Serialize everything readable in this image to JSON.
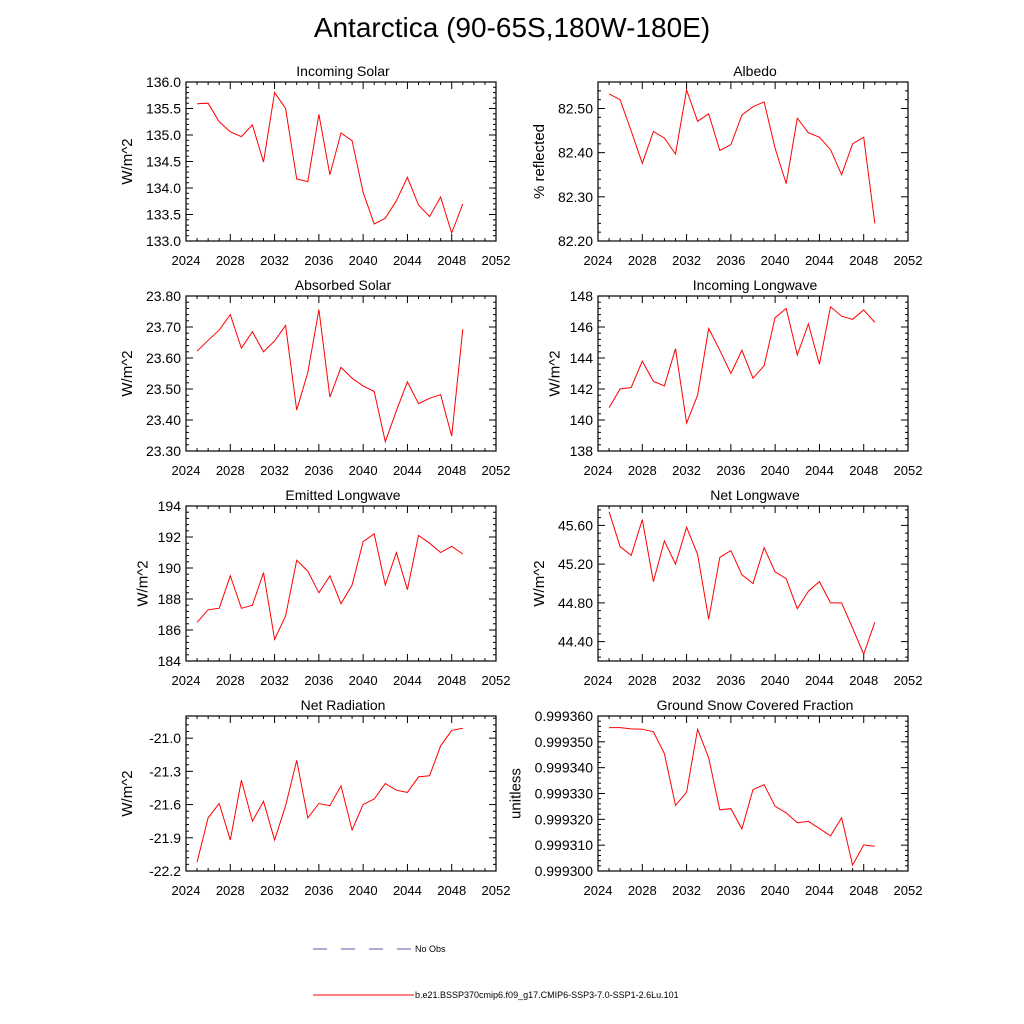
{
  "title": "Antarctica (90-65S,180W-180E)",
  "legend": {
    "obs_label": "No Obs",
    "obs_color": "#5a5aa0",
    "model_label": "b.e21.BSSP370cmip6.f09_g17.CMIP6-SSP3-7.0-SSP1-2.6Lu.101",
    "model_color": "#ff0000"
  },
  "chart_data": [
    {
      "type": "line",
      "title": "Incoming Solar",
      "ylabel": "W/m^2",
      "xlim": [
        2024,
        2052
      ],
      "xticks": [
        2024,
        2028,
        2032,
        2036,
        2040,
        2044,
        2048,
        2052
      ],
      "ylim": [
        133.0,
        136.0
      ],
      "yticks": [
        "133.0",
        "133.5",
        "134.0",
        "134.5",
        "135.0",
        "135.5",
        "136.0"
      ],
      "x": [
        2025,
        2026,
        2027,
        2028,
        2029,
        2030,
        2031,
        2032,
        2033,
        2034,
        2035,
        2036,
        2037,
        2038,
        2039,
        2040,
        2041,
        2042,
        2043,
        2044,
        2045,
        2046,
        2047,
        2048,
        2049
      ],
      "y": [
        135.59,
        135.6,
        135.25,
        135.06,
        134.97,
        135.19,
        134.49,
        135.8,
        135.5,
        134.17,
        134.12,
        135.39,
        134.25,
        135.04,
        134.89,
        133.92,
        133.32,
        133.43,
        133.76,
        134.2,
        133.68,
        133.46,
        133.83,
        133.15,
        133.7
      ]
    },
    {
      "type": "line",
      "title": "Albedo",
      "ylabel": "% reflected",
      "xlim": [
        2024,
        2052
      ],
      "xticks": [
        2024,
        2028,
        2032,
        2036,
        2040,
        2044,
        2048,
        2052
      ],
      "ylim": [
        82.2,
        82.56
      ],
      "yticks": [
        "82.20",
        "82.30",
        "82.40",
        "82.50"
      ],
      "x": [
        2025,
        2026,
        2027,
        2028,
        2029,
        2030,
        2031,
        2032,
        2033,
        2034,
        2035,
        2036,
        2037,
        2038,
        2039,
        2040,
        2041,
        2042,
        2043,
        2044,
        2045,
        2046,
        2047,
        2048,
        2049
      ],
      "y": [
        82.533,
        82.52,
        82.449,
        82.376,
        82.448,
        82.433,
        82.397,
        82.542,
        82.471,
        82.488,
        82.405,
        82.418,
        82.485,
        82.504,
        82.515,
        82.41,
        82.33,
        82.478,
        82.445,
        82.435,
        82.407,
        82.35,
        82.42,
        82.435,
        82.24
      ]
    },
    {
      "type": "line",
      "title": "Absorbed Solar",
      "ylabel": "W/m^2",
      "xlim": [
        2024,
        2052
      ],
      "xticks": [
        2024,
        2028,
        2032,
        2036,
        2040,
        2044,
        2048,
        2052
      ],
      "ylim": [
        23.3,
        23.8
      ],
      "yticks": [
        "23.30",
        "23.40",
        "23.50",
        "23.60",
        "23.70",
        "23.80"
      ],
      "x": [
        2025,
        2026,
        2027,
        2028,
        2029,
        2030,
        2031,
        2032,
        2033,
        2034,
        2035,
        2036,
        2037,
        2038,
        2039,
        2040,
        2041,
        2042,
        2043,
        2044,
        2045,
        2046,
        2047,
        2048,
        2049
      ],
      "y": [
        23.622,
        23.657,
        23.69,
        23.74,
        23.632,
        23.685,
        23.62,
        23.655,
        23.705,
        23.432,
        23.553,
        23.756,
        23.474,
        23.57,
        23.535,
        23.51,
        23.492,
        23.33,
        23.43,
        23.523,
        23.453,
        23.47,
        23.482,
        23.348,
        23.693
      ]
    },
    {
      "type": "line",
      "title": "Incoming Longwave",
      "ylabel": "W/m^2",
      "xlim": [
        2024,
        2052
      ],
      "xticks": [
        2024,
        2028,
        2032,
        2036,
        2040,
        2044,
        2048,
        2052
      ],
      "ylim": [
        138,
        148
      ],
      "yticks": [
        "138",
        "140",
        "142",
        "144",
        "146",
        "148"
      ],
      "x": [
        2025,
        2026,
        2027,
        2028,
        2029,
        2030,
        2031,
        2032,
        2033,
        2034,
        2035,
        2036,
        2037,
        2038,
        2039,
        2040,
        2041,
        2042,
        2043,
        2044,
        2045,
        2046,
        2047,
        2048,
        2049
      ],
      "y": [
        140.8,
        142.0,
        142.1,
        143.8,
        142.5,
        142.2,
        144.6,
        139.8,
        141.6,
        145.9,
        144.5,
        143.0,
        144.5,
        142.7,
        143.5,
        146.6,
        147.2,
        144.2,
        146.2,
        143.6,
        147.3,
        146.7,
        146.5,
        147.1,
        146.3
      ]
    },
    {
      "type": "line",
      "title": "Emitted Longwave",
      "ylabel": "W/m^2",
      "xlim": [
        2024,
        2052
      ],
      "xticks": [
        2024,
        2028,
        2032,
        2036,
        2040,
        2044,
        2048,
        2052
      ],
      "ylim": [
        184,
        194
      ],
      "yticks": [
        "184",
        "186",
        "188",
        "190",
        "192",
        "194"
      ],
      "x": [
        2025,
        2026,
        2027,
        2028,
        2029,
        2030,
        2031,
        2032,
        2033,
        2034,
        2035,
        2036,
        2037,
        2038,
        2039,
        2040,
        2041,
        2042,
        2043,
        2044,
        2045,
        2046,
        2047,
        2048,
        2049
      ],
      "y": [
        186.5,
        187.3,
        187.4,
        189.5,
        187.4,
        187.6,
        189.7,
        185.4,
        186.9,
        190.5,
        189.8,
        188.4,
        189.5,
        187.7,
        188.9,
        191.7,
        192.2,
        188.9,
        191.0,
        188.6,
        192.1,
        191.6,
        191.0,
        191.4,
        190.9
      ]
    },
    {
      "type": "line",
      "title": "Net Longwave",
      "ylabel": "W/m^2",
      "xlim": [
        2024,
        2052
      ],
      "xticks": [
        2024,
        2028,
        2032,
        2036,
        2040,
        2044,
        2048,
        2052
      ],
      "ylim": [
        44.2,
        45.8
      ],
      "yticks": [
        "44.40",
        "44.80",
        "45.20",
        "45.60"
      ],
      "x": [
        2025,
        2026,
        2027,
        2028,
        2029,
        2030,
        2031,
        2032,
        2033,
        2034,
        2035,
        2036,
        2037,
        2038,
        2039,
        2040,
        2041,
        2042,
        2043,
        2044,
        2045,
        2046,
        2047,
        2048,
        2049
      ],
      "y": [
        45.74,
        45.38,
        45.29,
        45.66,
        45.02,
        45.44,
        45.2,
        45.58,
        45.3,
        44.63,
        45.27,
        45.34,
        45.09,
        45.0,
        45.37,
        45.12,
        45.05,
        44.74,
        44.92,
        45.02,
        44.8,
        44.8,
        44.54,
        44.27,
        44.6
      ]
    },
    {
      "type": "line",
      "title": "Net Radiation",
      "ylabel": "W/m^2",
      "xlim": [
        2024,
        2052
      ],
      "xticks": [
        2024,
        2028,
        2032,
        2036,
        2040,
        2044,
        2048,
        2052
      ],
      "ylim": [
        -22.2,
        -20.8
      ],
      "yticks": [
        "-22.2",
        "-21.9",
        "-21.6",
        "-21.3",
        "-21.0"
      ],
      "x": [
        2025,
        2026,
        2027,
        2028,
        2029,
        2030,
        2031,
        2032,
        2033,
        2034,
        2035,
        2036,
        2037,
        2038,
        2039,
        2040,
        2041,
        2042,
        2043,
        2044,
        2045,
        2046,
        2047,
        2048,
        2049
      ],
      "y": [
        -22.12,
        -21.72,
        -21.59,
        -21.92,
        -21.38,
        -21.75,
        -21.57,
        -21.92,
        -21.61,
        -21.2,
        -21.72,
        -21.59,
        -21.61,
        -21.43,
        -21.83,
        -21.6,
        -21.55,
        -21.41,
        -21.47,
        -21.49,
        -21.35,
        -21.34,
        -21.07,
        -20.93,
        -20.91
      ]
    },
    {
      "type": "line",
      "title": "Ground Snow Covered Fraction",
      "ylabel": "unitless",
      "xlim": [
        2024,
        2052
      ],
      "xticks": [
        2024,
        2028,
        2032,
        2036,
        2040,
        2044,
        2048,
        2052
      ],
      "ylim": [
        0.9993,
        0.99936
      ],
      "yticks": [
        "0.999300",
        "0.999310",
        "0.999320",
        "0.999330",
        "0.999340",
        "0.999350",
        "0.999360"
      ],
      "x": [
        2025,
        2026,
        2027,
        2028,
        2029,
        2030,
        2031,
        2032,
        2033,
        2034,
        2035,
        2036,
        2037,
        2038,
        2039,
        2040,
        2041,
        2042,
        2043,
        2044,
        2045,
        2046,
        2047,
        2048,
        2049
      ],
      "y": [
        0.9993555,
        0.9993555,
        0.999355,
        0.9993549,
        0.9993539,
        0.9993454,
        0.9993254,
        0.9993305,
        0.9993549,
        0.9993438,
        0.9993237,
        0.9993241,
        0.9993163,
        0.9993315,
        0.9993334,
        0.9993251,
        0.9993225,
        0.9993187,
        0.9993192,
        0.9993165,
        0.9993136,
        0.9993206,
        0.9993023,
        0.9993101,
        0.9993096
      ]
    }
  ]
}
